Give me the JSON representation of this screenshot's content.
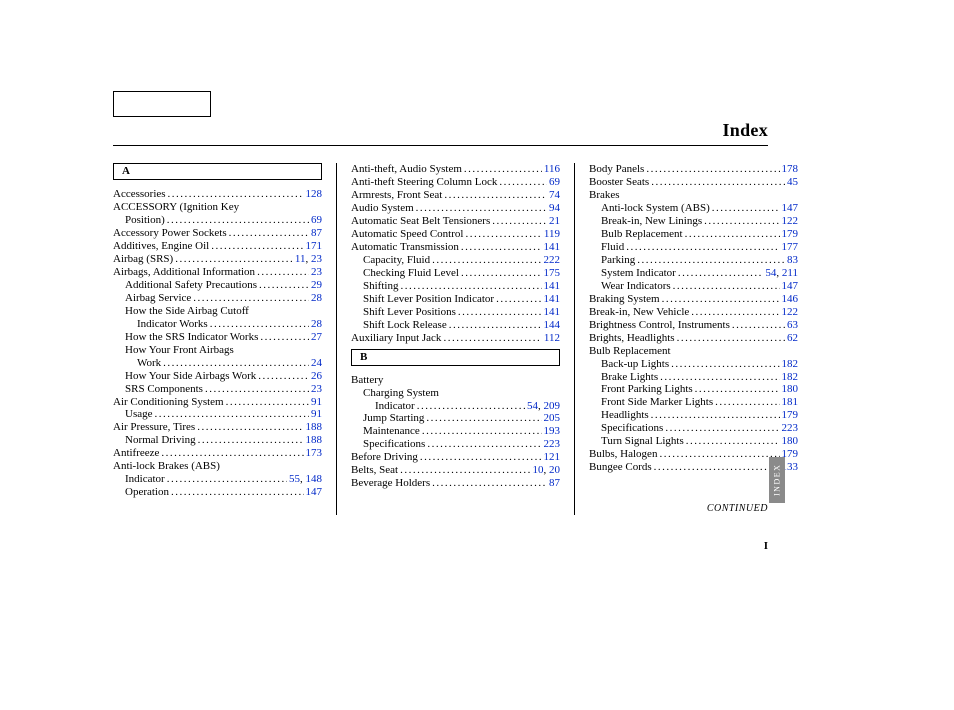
{
  "title": "Index",
  "continued": "CONTINUED",
  "pagenum": "I",
  "sidetab": "INDEX",
  "columns": [
    {
      "groups": [
        {
          "letter": "A",
          "entries": [
            {
              "t": "Accessories",
              "p": [
                "128"
              ]
            },
            {
              "t": "ACCESSORY (Ignition Key",
              "nolead": true
            },
            {
              "t": "Position)",
              "lvl": 1,
              "p": [
                "69"
              ]
            },
            {
              "t": "Accessory Power Sockets",
              "p": [
                "87"
              ]
            },
            {
              "t": "Additives, Engine Oil",
              "p": [
                "171"
              ]
            },
            {
              "t": "Airbag (SRS)",
              "p": [
                "11",
                "23"
              ]
            },
            {
              "t": "Airbags, Additional Information",
              "p": [
                "23"
              ]
            },
            {
              "t": "Additional Safety Precautions",
              "lvl": 1,
              "p": [
                "29"
              ]
            },
            {
              "t": "Airbag Service",
              "lvl": 1,
              "p": [
                "28"
              ]
            },
            {
              "t": "How the Side Airbag Cutoff",
              "lvl": 1,
              "nolead": true
            },
            {
              "t": "Indicator Works",
              "lvl": 2,
              "p": [
                "28"
              ]
            },
            {
              "t": "How the SRS Indicator Works",
              "lvl": 1,
              "p": [
                "27"
              ]
            },
            {
              "t": "How Your Front Airbags",
              "lvl": 1,
              "nolead": true
            },
            {
              "t": "Work",
              "lvl": 2,
              "p": [
                "24"
              ]
            },
            {
              "t": "How Your Side Airbags Work",
              "lvl": 1,
              "p": [
                "26"
              ]
            },
            {
              "t": "SRS Components",
              "lvl": 1,
              "p": [
                "23"
              ]
            },
            {
              "t": "Air Conditioning System",
              "p": [
                "91"
              ]
            },
            {
              "t": "Usage",
              "lvl": 1,
              "p": [
                "91"
              ]
            },
            {
              "t": "Air Pressure, Tires",
              "p": [
                "188"
              ]
            },
            {
              "t": "Normal Driving",
              "lvl": 1,
              "p": [
                "188"
              ]
            },
            {
              "t": "Antifreeze",
              "p": [
                "173"
              ]
            },
            {
              "t": "Anti-lock Brakes (ABS)",
              "nolead": true
            },
            {
              "t": "Indicator",
              "lvl": 1,
              "p": [
                "55",
                "148"
              ]
            },
            {
              "t": "Operation",
              "lvl": 1,
              "p": [
                "147"
              ]
            }
          ]
        }
      ]
    },
    {
      "groups": [
        {
          "entries": [
            {
              "t": "Anti-theft, Audio System",
              "p": [
                "116"
              ]
            },
            {
              "t": "Anti-theft Steering Column Lock",
              "p": [
                "69"
              ]
            },
            {
              "t": "Armrests, Front Seat",
              "p": [
                "74"
              ]
            },
            {
              "t": "Audio System",
              "p": [
                "94"
              ]
            },
            {
              "t": "Automatic Seat Belt Tensioners",
              "p": [
                "21"
              ]
            },
            {
              "t": "Automatic Speed Control",
              "p": [
                "119"
              ]
            },
            {
              "t": "Automatic Transmission",
              "p": [
                "141"
              ]
            },
            {
              "t": "Capacity, Fluid",
              "lvl": 1,
              "p": [
                "222"
              ]
            },
            {
              "t": "Checking Fluid Level",
              "lvl": 1,
              "p": [
                "175"
              ]
            },
            {
              "t": "Shifting",
              "lvl": 1,
              "p": [
                "141"
              ]
            },
            {
              "t": "Shift Lever Position Indicator",
              "lvl": 1,
              "p": [
                "141"
              ]
            },
            {
              "t": "Shift Lever Positions",
              "lvl": 1,
              "p": [
                "141"
              ]
            },
            {
              "t": "Shift Lock Release",
              "lvl": 1,
              "p": [
                "144"
              ]
            },
            {
              "t": "Auxiliary Input Jack",
              "p": [
                "112"
              ]
            }
          ]
        },
        {
          "letter": "B",
          "entries": [
            {
              "t": "Battery",
              "nolead": true
            },
            {
              "t": "Charging System",
              "lvl": 1,
              "nolead": true
            },
            {
              "t": "Indicator",
              "lvl": 2,
              "p": [
                "54",
                "209"
              ]
            },
            {
              "t": "Jump Starting",
              "lvl": 1,
              "p": [
                "205"
              ]
            },
            {
              "t": "Maintenance",
              "lvl": 1,
              "p": [
                "193"
              ]
            },
            {
              "t": "Specifications",
              "lvl": 1,
              "p": [
                "223"
              ]
            },
            {
              "t": "Before Driving",
              "p": [
                "121"
              ]
            },
            {
              "t": "Belts, Seat",
              "p": [
                "10",
                "20"
              ]
            },
            {
              "t": "Beverage Holders",
              "p": [
                "87"
              ]
            }
          ]
        }
      ]
    },
    {
      "groups": [
        {
          "entries": [
            {
              "t": "Body Panels",
              "p": [
                "178"
              ]
            },
            {
              "t": "Booster Seats",
              "p": [
                "45"
              ]
            },
            {
              "t": "Brakes",
              "nolead": true
            },
            {
              "t": "Anti-lock System (ABS)",
              "lvl": 1,
              "p": [
                "147"
              ]
            },
            {
              "t": "Break-in, New Linings",
              "lvl": 1,
              "p": [
                "122"
              ]
            },
            {
              "t": "Bulb Replacement",
              "lvl": 1,
              "p": [
                "179"
              ]
            },
            {
              "t": "Fluid",
              "lvl": 1,
              "p": [
                "177"
              ]
            },
            {
              "t": "Parking",
              "lvl": 1,
              "p": [
                "83"
              ]
            },
            {
              "t": "System Indicator",
              "lvl": 1,
              "p": [
                "54",
                "211"
              ]
            },
            {
              "t": "Wear Indicators",
              "lvl": 1,
              "p": [
                "147"
              ]
            },
            {
              "t": "Braking System",
              "p": [
                "146"
              ]
            },
            {
              "t": "Break-in, New Vehicle",
              "p": [
                "122"
              ]
            },
            {
              "t": "Brightness Control, Instruments",
              "p": [
                "63"
              ]
            },
            {
              "t": "Brights, Headlights",
              "p": [
                "62"
              ]
            },
            {
              "t": "Bulb Replacement",
              "nolead": true
            },
            {
              "t": "Back-up Lights",
              "lvl": 1,
              "p": [
                "182"
              ]
            },
            {
              "t": "Brake Lights",
              "lvl": 1,
              "p": [
                "182"
              ]
            },
            {
              "t": "Front Parking Lights",
              "lvl": 1,
              "p": [
                "180"
              ]
            },
            {
              "t": "Front Side Marker Lights",
              "lvl": 1,
              "p": [
                "181"
              ]
            },
            {
              "t": "Headlights",
              "lvl": 1,
              "p": [
                "179"
              ]
            },
            {
              "t": "Specifications",
              "lvl": 1,
              "p": [
                "223"
              ]
            },
            {
              "t": "Turn Signal Lights",
              "lvl": 1,
              "p": [
                "180"
              ]
            },
            {
              "t": "Bulbs, Halogen",
              "p": [
                "179"
              ]
            },
            {
              "t": "Bungee Cords",
              "p": [
                "133"
              ]
            }
          ]
        }
      ]
    }
  ]
}
